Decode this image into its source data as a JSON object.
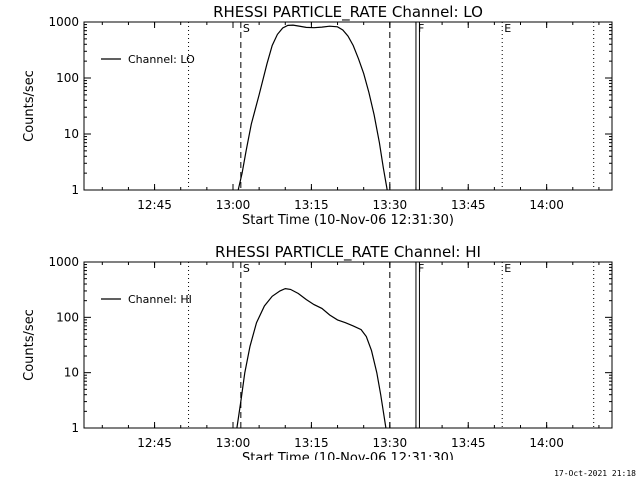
{
  "footer": {
    "timestamp": "17-Oct-2021 21:18"
  },
  "chart_data": [
    {
      "type": "line",
      "title": "RHESSI PARTICLE_RATE Channel: LO",
      "xlabel": "Start Time (10-Nov-06 12:31:30)",
      "ylabel": "Counts/sec",
      "yscale": "log",
      "ylim": [
        1,
        1000
      ],
      "xlim": [
        "12:31:30",
        "14:12:30"
      ],
      "x_ticks": [
        "12:45",
        "13:00",
        "13:15",
        "13:30",
        "13:45",
        "14:00"
      ],
      "y_ticks": [
        "1",
        "10",
        "100",
        "1000"
      ],
      "legend": {
        "placement": "top-left",
        "entries": [
          "Channel: LO"
        ]
      },
      "markers": [
        {
          "label": "S",
          "time": "13:01:30",
          "style": "dashed"
        },
        {
          "label": "",
          "time": "13:30",
          "style": "dashed"
        },
        {
          "label": "F",
          "time": "13:35",
          "style": "solid"
        },
        {
          "label": "",
          "time": "13:35:40",
          "style": "solid"
        },
        {
          "label": "",
          "time": "12:51:30",
          "style": "dotted"
        },
        {
          "label": "E",
          "time": "13:51:30",
          "style": "dotted"
        },
        {
          "label": "",
          "time": "14:09",
          "style": "dotted"
        }
      ],
      "series": [
        {
          "name": "Channel: LO",
          "x": [
            "13:01:00",
            "13:01:45",
            "13:02:30",
            "13:03:30",
            "13:05:00",
            "13:06:30",
            "13:07:30",
            "13:08:30",
            "13:09:30",
            "13:10:30",
            "13:11:30",
            "13:12:30",
            "13:14:00",
            "13:15:30",
            "13:17:00",
            "13:18:30",
            "13:20:00",
            "13:21:00",
            "13:22:00",
            "13:23:00",
            "13:24:00",
            "13:25:00",
            "13:26:00",
            "13:27:00",
            "13:28:00",
            "13:28:45",
            "13:29:30"
          ],
          "y": [
            1,
            2,
            5,
            15,
            50,
            180,
            380,
            600,
            780,
            870,
            880,
            850,
            800,
            790,
            810,
            840,
            820,
            720,
            560,
            380,
            220,
            120,
            55,
            22,
            7,
            2.5,
            1
          ]
        }
      ]
    },
    {
      "type": "line",
      "title": "RHESSI PARTICLE_RATE Channel: HI",
      "xlabel": "Start Time (10-Nov-06 12:31:30)",
      "ylabel": "Counts/sec",
      "yscale": "log",
      "ylim": [
        1,
        1000
      ],
      "xlim": [
        "12:31:30",
        "14:12:30"
      ],
      "x_ticks": [
        "12:45",
        "13:00",
        "13:15",
        "13:30",
        "13:45",
        "14:00"
      ],
      "y_ticks": [
        "1",
        "10",
        "100",
        "1000"
      ],
      "legend": {
        "placement": "top-left",
        "entries": [
          "Channel: HI"
        ]
      },
      "markers": [
        {
          "label": "S",
          "time": "13:01:30",
          "style": "dashed"
        },
        {
          "label": "",
          "time": "13:30",
          "style": "dashed"
        },
        {
          "label": "F",
          "time": "13:35",
          "style": "solid"
        },
        {
          "label": "",
          "time": "13:35:40",
          "style": "solid"
        },
        {
          "label": "",
          "time": "12:51:30",
          "style": "dotted"
        },
        {
          "label": "E",
          "time": "13:51:30",
          "style": "dotted"
        },
        {
          "label": "",
          "time": "14:09",
          "style": "dotted"
        }
      ],
      "series": [
        {
          "name": "Channel: HI",
          "x": [
            "13:00:45",
            "13:01:30",
            "13:02:15",
            "13:03:15",
            "13:04:30",
            "13:06:00",
            "13:07:30",
            "13:09:00",
            "13:10:00",
            "13:11:00",
            "13:12:30",
            "13:14:00",
            "13:15:30",
            "13:17:00",
            "13:18:30",
            "13:20:00",
            "13:21:30",
            "13:23:00",
            "13:24:30",
            "13:25:30",
            "13:26:30",
            "13:27:30",
            "13:28:15",
            "13:28:45",
            "13:29:15"
          ],
          "y": [
            1,
            3,
            10,
            30,
            80,
            160,
            240,
            300,
            330,
            320,
            270,
            210,
            170,
            145,
            110,
            90,
            80,
            70,
            60,
            45,
            25,
            10,
            4,
            2,
            1
          ]
        }
      ]
    }
  ]
}
